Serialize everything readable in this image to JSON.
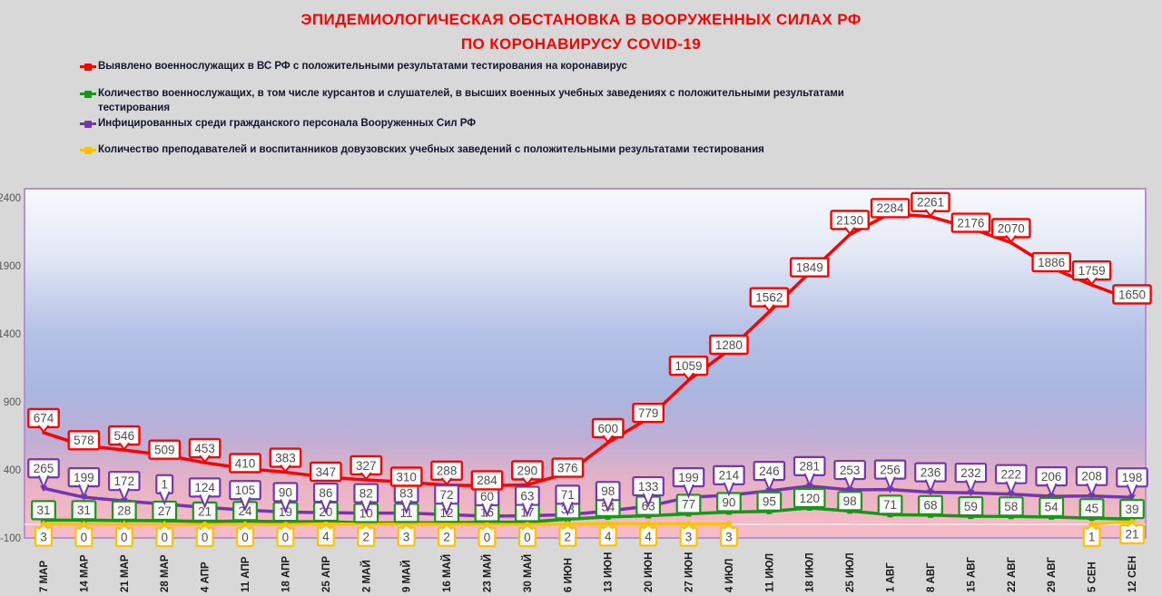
{
  "title": {
    "line1": "ЭПИДЕМИОЛОГИЧЕСКАЯ ОБСТАНОВКА В ВООРУЖЕННЫХ СИЛАХ РФ",
    "line2": "ПО КОРОНАВИРУСУ COVID-19"
  },
  "legend": [
    {
      "label": "Выявлено военнослужащих в ВС РФ с положительными результатами тестирования на коронавирус",
      "color": "#ff0000"
    },
    {
      "label": "Количество военнослужащих, в том числе курсантов и слушателей, в высших военных учебных заведениях с положительными результатами тестирования",
      "color": "#18961a"
    },
    {
      "label": "Инфицированных среди гражданского персонала Вооруженных Сил РФ",
      "color": "#7436ae"
    },
    {
      "label": "Количество преподавателей и воспитанников довузовских учебных заведений с положительными результатами тестирования",
      "color": "#ffc000"
    }
  ],
  "chart_data": {
    "type": "line",
    "categories": [
      "7 МАР",
      "14 МАР",
      "21 МАР",
      "28 МАР",
      "4 АПР",
      "11 АПР",
      "18 АПР",
      "25 АПР",
      "2 МАЙ",
      "9 МАЙ",
      "16 МАЙ",
      "23 МАЙ",
      "30 МАЙ",
      "6 ИЮН",
      "13 ИЮН",
      "20 ИЮН",
      "27 ИЮН",
      "4 ИЮЛ",
      "11 ИЮЛ",
      "18 ИЮЛ",
      "25 ИЮЛ",
      "1 АВГ",
      "8 АВГ",
      "15 АВГ",
      "22 АВГ",
      "29 АВГ",
      "5 СЕН",
      "12 СЕН"
    ],
    "y_ticks": [
      -100,
      400,
      900,
      1400,
      1900,
      2400
    ],
    "ylim": [
      -100,
      2466
    ],
    "grid": "zero-line-only",
    "legend_position": "top-left",
    "series": [
      {
        "key": "red",
        "name": "Выявлено военнослужащих в ВС РФ с положительными результатами тестирования на коронавирус",
        "color": "#ff0000",
        "values": [
          674,
          578,
          546,
          509,
          453,
          410,
          383,
          347,
          327,
          310,
          288,
          284,
          290,
          376,
          600,
          779,
          1059,
          1280,
          1562,
          1849,
          2130,
          2284,
          2261,
          2176,
          2070,
          1886,
          1759,
          1650
        ]
      },
      {
        "key": "green",
        "name": "Количество военнослужащих, в том числе курсантов и слушателей, в высших военных учебных заведениях с положительными результатами тестирования",
        "color": "#18961a",
        "values": [
          31,
          31,
          28,
          27,
          21,
          24,
          19,
          20,
          10,
          11,
          12,
          16,
          17,
          38,
          54,
          63,
          77,
          90,
          95,
          120,
          98,
          71,
          68,
          59,
          58,
          54,
          45,
          39
        ]
      },
      {
        "key": "purple",
        "name": "Инфицированных среди гражданского персонала Вооруженных Сил РФ",
        "color": "#7436ae",
        "values": [
          265,
          199,
          172,
          148,
          124,
          105,
          90,
          86,
          82,
          83,
          72,
          60,
          63,
          71,
          98,
          133,
          199,
          214,
          246,
          281,
          253,
          256,
          236,
          232,
          222,
          206,
          208,
          198
        ],
        "labels": [
          null,
          null,
          null,
          "1",
          null,
          null,
          null,
          null,
          null,
          null,
          null,
          null,
          null,
          null,
          null,
          null,
          null,
          null,
          null,
          null,
          null,
          null,
          null,
          null,
          null,
          null,
          null,
          null
        ]
      },
      {
        "key": "yellow",
        "name": "Количество преподавателей и воспитанников довузовских учебных заведений с положительными результатами тестирования",
        "color": "#ffc000",
        "values": [
          3,
          0,
          0,
          0,
          0,
          0,
          0,
          4,
          2,
          3,
          2,
          0,
          0,
          2,
          4,
          4,
          3,
          3,
          null,
          null,
          null,
          null,
          null,
          null,
          null,
          null,
          1,
          21
        ]
      }
    ]
  }
}
